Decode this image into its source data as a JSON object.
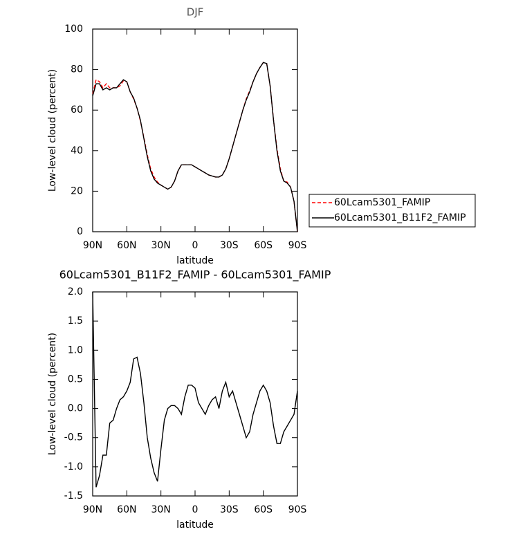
{
  "chart_data": [
    {
      "type": "line",
      "title": "DJF",
      "x_label": "latitude",
      "y_label": "Low-level cloud (percent)",
      "x": [
        90,
        87,
        84,
        81,
        78,
        75,
        72,
        69,
        66,
        63,
        60,
        57,
        54,
        51,
        48,
        45,
        42,
        39,
        36,
        33,
        30,
        27,
        24,
        21,
        18,
        15,
        12,
        9,
        6,
        3,
        0,
        -3,
        -6,
        -9,
        -12,
        -15,
        -18,
        -21,
        -24,
        -27,
        -30,
        -33,
        -36,
        -39,
        -42,
        -45,
        -48,
        -51,
        -54,
        -57,
        -60,
        -63,
        -66,
        -69,
        -72,
        -75,
        -78,
        -81,
        -84,
        -87,
        -90
      ],
      "series": [
        {
          "name": "60Lcam5301_FAMIP",
          "color": "#ff0000",
          "dash": true,
          "values": [
            68,
            75,
            74,
            71,
            73,
            71,
            71,
            71,
            72,
            74.5,
            74,
            69,
            65.5,
            61,
            54.5,
            46.5,
            38,
            31,
            27,
            24.5,
            23,
            22,
            21,
            22,
            25,
            30,
            33,
            33,
            33,
            33,
            32,
            31,
            30,
            29,
            28,
            27.5,
            27,
            27,
            28,
            31,
            36,
            42,
            48,
            54,
            60,
            65.5,
            69.5,
            74,
            78,
            81,
            83.5,
            83,
            72,
            55,
            41,
            31,
            25,
            24.5,
            22,
            15,
            0
          ]
        },
        {
          "name": "60Lcam5301_B11F2_FAMIP",
          "color": "#000000",
          "dash": false,
          "values": [
            67,
            73,
            73,
            70,
            71,
            70,
            71,
            71,
            73,
            75,
            74,
            69,
            66,
            61,
            55,
            46,
            37,
            30,
            26,
            24,
            23,
            22,
            21,
            22,
            25,
            30,
            33,
            33,
            33,
            33,
            32,
            31,
            30,
            29,
            28,
            27.5,
            27,
            27,
            28,
            31,
            36,
            42,
            48,
            54,
            60,
            65,
            69,
            74,
            78,
            81,
            83.5,
            83,
            72,
            55,
            40,
            30,
            25,
            24,
            22,
            15,
            0
          ]
        }
      ],
      "xlim": [
        90,
        -90
      ],
      "xticks": [
        {
          "value": 90,
          "label": "90N"
        },
        {
          "value": 60,
          "label": "60N"
        },
        {
          "value": 30,
          "label": "30N"
        },
        0,
        {
          "value": -30,
          "label": "30S"
        },
        {
          "value": -60,
          "label": "60S"
        },
        {
          "value": -90,
          "label": "90S"
        }
      ],
      "ylim": [
        0,
        100
      ],
      "yticks": [
        0,
        20,
        40,
        60,
        80,
        100
      ],
      "legend": "right"
    },
    {
      "type": "line",
      "title": "60Lcam5301_B11F2_FAMIP - 60Lcam5301_FAMIP",
      "x_label": "latitude",
      "y_label": "Low-level cloud (percent)",
      "x": [
        90,
        87,
        84,
        81,
        78,
        75,
        72,
        69,
        66,
        63,
        60,
        57,
        54,
        51,
        48,
        45,
        42,
        39,
        36,
        33,
        30,
        27,
        24,
        21,
        18,
        15,
        12,
        9,
        6,
        3,
        0,
        -3,
        -6,
        -9,
        -12,
        -15,
        -18,
        -21,
        -24,
        -27,
        -30,
        -33,
        -36,
        -39,
        -42,
        -45,
        -48,
        -51,
        -54,
        -57,
        -60,
        -63,
        -66,
        -69,
        -72,
        -75,
        -78,
        -81,
        -84,
        -87,
        -90
      ],
      "color": "#000000",
      "values": [
        2.0,
        -1.35,
        -1.15,
        -0.8,
        -0.8,
        -0.25,
        -0.2,
        0.0,
        0.15,
        0.2,
        0.3,
        0.45,
        0.85,
        0.88,
        0.6,
        0.1,
        -0.5,
        -0.85,
        -1.1,
        -1.25,
        -0.7,
        -0.2,
        0.0,
        0.05,
        0.05,
        0.0,
        -0.1,
        0.2,
        0.4,
        0.4,
        0.35,
        0.1,
        0.0,
        -0.1,
        0.05,
        0.15,
        0.2,
        0.0,
        0.3,
        0.45,
        0.2,
        0.3,
        0.1,
        -0.1,
        -0.3,
        -0.5,
        -0.4,
        -0.1,
        0.1,
        0.3,
        0.4,
        0.3,
        0.1,
        -0.3,
        -0.6,
        -0.6,
        -0.4,
        -0.3,
        -0.2,
        -0.1,
        0.3
      ],
      "xlim": [
        90,
        -90
      ],
      "xticks": [
        {
          "value": 90,
          "label": "90N"
        },
        {
          "value": 60,
          "label": "60N"
        },
        {
          "value": 30,
          "label": "30N"
        },
        0,
        {
          "value": -30,
          "label": "30S"
        },
        {
          "value": -60,
          "label": "60S"
        },
        {
          "value": -90,
          "label": "90S"
        }
      ],
      "ylim": [
        -1.5,
        2.0
      ],
      "yticks": [
        {
          "value": -1.5,
          "label": "-1.5"
        },
        {
          "value": -1.0,
          "label": "-1.0"
        },
        {
          "value": -0.5,
          "label": "-0.5"
        },
        {
          "value": 0,
          "label": "0.0"
        },
        {
          "value": 0.5,
          "label": "0.5"
        },
        {
          "value": 1.0,
          "label": "1.0"
        },
        {
          "value": 1.5,
          "label": "1.5"
        },
        {
          "value": 2.0,
          "label": "2.0"
        }
      ]
    }
  ]
}
